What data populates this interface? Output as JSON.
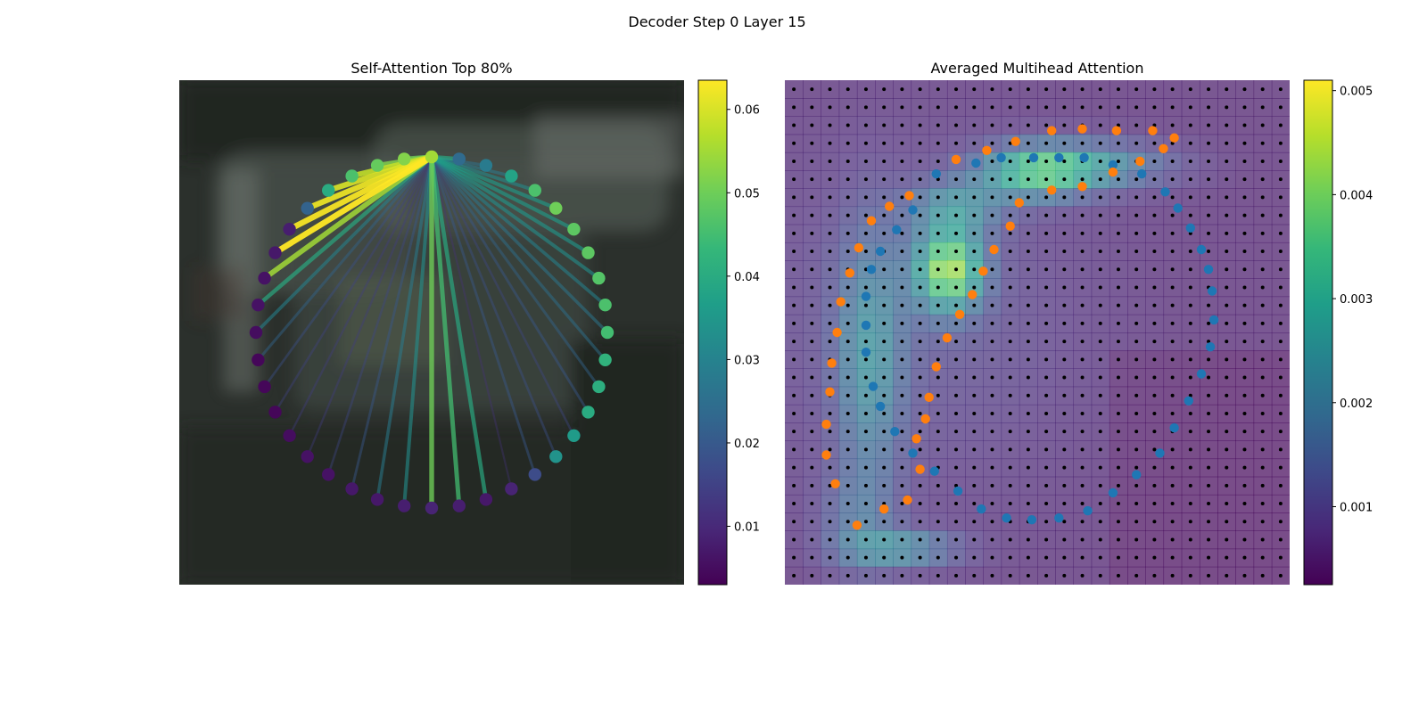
{
  "figure": {
    "suptitle": "Decoder Step 0 Layer 15"
  },
  "colors": {
    "viridis": [
      "#440154",
      "#482878",
      "#3e4989",
      "#31688e",
      "#26828e",
      "#1f9e89",
      "#35b779",
      "#6ece58",
      "#b5de2b",
      "#fde725"
    ],
    "blue_points": "#1f77b4",
    "orange_points": "#ff7f0e",
    "grid_dots": "#000000"
  },
  "chart_data": [
    {
      "type": "network",
      "title": "Self-Attention Top 80%",
      "background": "blurred photo of a vehicle (dark grey-green)",
      "node_count": 40,
      "source_node": 0,
      "node_values": [
        0.055,
        0.052,
        0.049,
        0.046,
        0.04,
        0.022,
        0.008,
        0.007,
        0.006,
        0.006,
        0.005,
        0.004,
        0.004,
        0.004,
        0.005,
        0.006,
        0.006,
        0.007,
        0.007,
        0.008,
        0.009,
        0.008,
        0.007,
        0.009,
        0.017,
        0.034,
        0.036,
        0.04,
        0.041,
        0.042,
        0.045,
        0.046,
        0.047,
        0.048,
        0.048,
        0.05,
        0.046,
        0.038,
        0.028,
        0.024
      ],
      "edges": [
        {
          "to": 1,
          "w": 0.05
        },
        {
          "to": 2,
          "w": 0.052
        },
        {
          "to": 3,
          "w": 0.058
        },
        {
          "to": 4,
          "w": 0.06
        },
        {
          "to": 5,
          "w": 0.062
        },
        {
          "to": 6,
          "w": 0.063
        },
        {
          "to": 7,
          "w": 0.064
        },
        {
          "to": 8,
          "w": 0.055
        },
        {
          "to": 9,
          "w": 0.04
        },
        {
          "to": 10,
          "w": 0.03
        },
        {
          "to": 11,
          "w": 0.022
        },
        {
          "to": 12,
          "w": 0.018
        },
        {
          "to": 13,
          "w": 0.015
        },
        {
          "to": 14,
          "w": 0.014
        },
        {
          "to": 15,
          "w": 0.014
        },
        {
          "to": 16,
          "w": 0.016
        },
        {
          "to": 17,
          "w": 0.02
        },
        {
          "to": 18,
          "w": 0.028
        },
        {
          "to": 19,
          "w": 0.033
        },
        {
          "to": 20,
          "w": 0.05
        },
        {
          "to": 21,
          "w": 0.045
        },
        {
          "to": 22,
          "w": 0.04
        },
        {
          "to": 23,
          "w": 0.012
        },
        {
          "to": 24,
          "w": 0.02
        },
        {
          "to": 25,
          "w": 0.018
        },
        {
          "to": 26,
          "w": 0.016
        },
        {
          "to": 27,
          "w": 0.02
        },
        {
          "to": 28,
          "w": 0.022
        },
        {
          "to": 29,
          "w": 0.025
        },
        {
          "to": 30,
          "w": 0.027
        },
        {
          "to": 31,
          "w": 0.03
        },
        {
          "to": 32,
          "w": 0.033
        },
        {
          "to": 33,
          "w": 0.035
        },
        {
          "to": 34,
          "w": 0.036
        },
        {
          "to": 35,
          "w": 0.036
        },
        {
          "to": 36,
          "w": 0.032
        },
        {
          "to": 37,
          "w": 0.028
        },
        {
          "to": 38,
          "w": 0.026
        },
        {
          "to": 39,
          "w": 0.04
        }
      ],
      "colorbar": {
        "min": 0.003,
        "max": 0.0635,
        "ticks": [
          0.01,
          0.02,
          0.03,
          0.04,
          0.05,
          0.06
        ],
        "tick_labels": [
          "0.01",
          "0.02",
          "0.03",
          "0.04",
          "0.05",
          "0.06"
        ]
      }
    },
    {
      "type": "heatmap",
      "title": "Averaged Multihead Attention",
      "grid_size": 28,
      "colorbar": {
        "min": 0.00025,
        "max": 0.0051,
        "ticks": [
          0.001,
          0.002,
          0.003,
          0.004,
          0.005
        ],
        "tick_labels": [
          "0.001",
          "0.002",
          "0.003",
          "0.004",
          "0.005"
        ]
      },
      "hotspots": [
        {
          "cx": 8.6,
          "cy": 10.0,
          "sx": 1.3,
          "sy": 1.6,
          "v": 0.0035
        },
        {
          "cx": 13.5,
          "cy": 4.6,
          "sx": 2.2,
          "sy": 1.0,
          "v": 0.0026
        },
        {
          "cx": 9.0,
          "cy": 6.5,
          "sx": 1.8,
          "sy": 1.0,
          "v": 0.0014
        },
        {
          "cx": 17.0,
          "cy": 4.2,
          "sx": 3.0,
          "sy": 0.9,
          "v": 0.0014
        },
        {
          "cx": 4.2,
          "cy": 15.0,
          "sx": 1.3,
          "sy": 5.0,
          "v": 0.0015
        },
        {
          "cx": 6.0,
          "cy": 25.5,
          "sx": 2.2,
          "sy": 0.7,
          "v": 0.0016
        },
        {
          "cx": 3.5,
          "cy": 24.0,
          "sx": 1.5,
          "sy": 2.0,
          "v": 0.0008
        }
      ],
      "blue_points": [
        [
          8.4,
          5.2
        ],
        [
          10.6,
          4.6
        ],
        [
          12.0,
          4.3
        ],
        [
          13.8,
          4.3
        ],
        [
          15.2,
          4.3
        ],
        [
          16.6,
          4.3
        ],
        [
          18.2,
          4.7
        ],
        [
          19.8,
          5.2
        ],
        [
          21.1,
          6.2
        ],
        [
          21.8,
          7.1
        ],
        [
          22.5,
          8.2
        ],
        [
          23.1,
          9.4
        ],
        [
          23.5,
          10.5
        ],
        [
          23.7,
          11.7
        ],
        [
          23.8,
          13.3
        ],
        [
          23.6,
          14.8
        ],
        [
          23.1,
          16.3
        ],
        [
          22.4,
          17.8
        ],
        [
          21.6,
          19.3
        ],
        [
          20.8,
          20.7
        ],
        [
          19.5,
          21.9
        ],
        [
          18.2,
          22.9
        ],
        [
          16.8,
          23.9
        ],
        [
          15.2,
          24.3
        ],
        [
          13.7,
          24.4
        ],
        [
          12.3,
          24.3
        ],
        [
          10.9,
          23.8
        ],
        [
          9.6,
          22.8
        ],
        [
          8.3,
          21.7
        ],
        [
          7.1,
          20.7
        ],
        [
          6.1,
          19.5
        ],
        [
          5.3,
          18.1
        ],
        [
          4.9,
          17.0
        ],
        [
          4.5,
          15.1
        ],
        [
          4.5,
          13.6
        ],
        [
          4.5,
          12.0
        ],
        [
          4.8,
          10.5
        ],
        [
          5.3,
          9.5
        ],
        [
          6.2,
          8.3
        ],
        [
          7.1,
          7.2
        ]
      ],
      "orange_points": [
        [
          9.5,
          4.4
        ],
        [
          11.2,
          3.9
        ],
        [
          12.8,
          3.4
        ],
        [
          14.8,
          2.8
        ],
        [
          16.5,
          2.7
        ],
        [
          18.4,
          2.8
        ],
        [
          20.4,
          2.8
        ],
        [
          21.6,
          3.2
        ],
        [
          21.0,
          3.8
        ],
        [
          19.7,
          4.5
        ],
        [
          18.2,
          5.1
        ],
        [
          16.5,
          5.9
        ],
        [
          14.8,
          6.1
        ],
        [
          13.0,
          6.8
        ],
        [
          12.5,
          8.1
        ],
        [
          11.6,
          9.4
        ],
        [
          11.0,
          10.6
        ],
        [
          10.4,
          11.9
        ],
        [
          9.7,
          13.0
        ],
        [
          9.0,
          14.3
        ],
        [
          8.4,
          15.9
        ],
        [
          8.0,
          17.6
        ],
        [
          7.8,
          18.8
        ],
        [
          7.3,
          19.9
        ],
        [
          7.5,
          21.6
        ],
        [
          6.8,
          23.3
        ],
        [
          5.5,
          23.8
        ],
        [
          4.0,
          24.7
        ],
        [
          2.8,
          22.4
        ],
        [
          2.3,
          20.8
        ],
        [
          2.3,
          19.1
        ],
        [
          2.5,
          17.3
        ],
        [
          2.6,
          15.7
        ],
        [
          2.9,
          14.0
        ],
        [
          3.1,
          12.3
        ],
        [
          3.6,
          10.7
        ],
        [
          4.1,
          9.3
        ],
        [
          4.8,
          7.8
        ],
        [
          5.8,
          7.0
        ],
        [
          6.9,
          6.4
        ]
      ]
    }
  ]
}
